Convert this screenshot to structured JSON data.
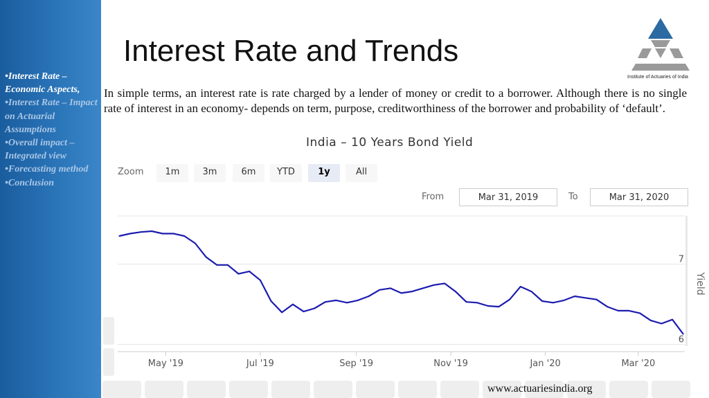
{
  "slide": {
    "title": "Interest Rate and Trends",
    "intro": "In simple terms, an interest rate is rate charged by a lender of money or credit to a borrower. Although there is no single rate of interest in an economy- depends on term, purpose, creditworthiness of the borrower and probability of ‘default’.",
    "footer_url": "www.actuariesindia.org",
    "logo_caption": "Institute of Actuaries of India"
  },
  "sidebar": {
    "items": [
      {
        "label": "•Interest Rate – Economic Aspects,",
        "active": true
      },
      {
        "label": "•Interest Rate – Impact on Actuarial Assumptions",
        "active": false
      },
      {
        "label": "•Overall impact – Integrated view",
        "active": false
      },
      {
        "label": "•Forecasting method",
        "active": false
      },
      {
        "label": "•Conclusion",
        "active": false
      }
    ]
  },
  "chart_toolbar": {
    "zoom_label": "Zoom",
    "zoom_buttons": [
      "1m",
      "3m",
      "6m",
      "YTD",
      "1y",
      "All"
    ],
    "active_zoom": "1y",
    "from_label": "From",
    "from_value": "Mar 31, 2019",
    "to_label": "To",
    "to_value": "Mar 31, 2020"
  },
  "colors": {
    "sidebar": "#1a5d9e",
    "line": "#1b1bb0",
    "logo_blue": "#2b6aa3",
    "logo_grey": "#9a9a9a"
  },
  "chart_data": {
    "type": "line",
    "title": "India – 10 Years Bond Yield",
    "ylabel": "Yield",
    "ylim": [
      6,
      7.5
    ],
    "y_ticks": [
      6,
      7
    ],
    "y_tick_labels": [
      "6",
      "7"
    ],
    "x_ticks": [
      "2019-05-01",
      "2019-07-01",
      "2019-09-01",
      "2019-11-01",
      "2020-01-01",
      "2020-03-01"
    ],
    "x_tick_labels": [
      "May '19",
      "Jul '19",
      "Sep '19",
      "Nov '19",
      "Jan '20",
      "Mar '20"
    ],
    "grid": "horizontal",
    "series": [
      {
        "x": [
          "2019-04-01",
          "2019-04-08",
          "2019-04-15",
          "2019-04-22",
          "2019-04-29",
          "2019-05-06",
          "2019-05-13",
          "2019-05-20",
          "2019-05-27",
          "2019-06-03",
          "2019-06-10",
          "2019-06-17",
          "2019-06-24",
          "2019-07-01",
          "2019-07-08",
          "2019-07-15",
          "2019-07-22",
          "2019-07-29",
          "2019-08-05",
          "2019-08-12",
          "2019-08-19",
          "2019-08-26",
          "2019-09-02",
          "2019-09-09",
          "2019-09-16",
          "2019-09-23",
          "2019-09-30",
          "2019-10-07",
          "2019-10-14",
          "2019-10-21",
          "2019-10-28",
          "2019-11-04",
          "2019-11-11",
          "2019-11-18",
          "2019-11-25",
          "2019-12-02",
          "2019-12-09",
          "2019-12-16",
          "2019-12-23",
          "2019-12-30",
          "2020-01-06",
          "2020-01-13",
          "2020-01-20",
          "2020-01-27",
          "2020-02-03",
          "2020-02-10",
          "2020-02-17",
          "2020-02-24",
          "2020-03-02",
          "2020-03-09",
          "2020-03-16",
          "2020-03-23",
          "2020-03-30"
        ],
        "y": [
          7.35,
          7.38,
          7.4,
          7.41,
          7.38,
          7.38,
          7.35,
          7.26,
          7.09,
          6.99,
          6.99,
          6.88,
          6.91,
          6.8,
          6.54,
          6.4,
          6.5,
          6.41,
          6.45,
          6.53,
          6.55,
          6.52,
          6.55,
          6.6,
          6.68,
          6.7,
          6.64,
          6.66,
          6.7,
          6.74,
          6.76,
          6.66,
          6.53,
          6.52,
          6.48,
          6.47,
          6.56,
          6.72,
          6.66,
          6.54,
          6.52,
          6.55,
          6.6,
          6.58,
          6.56,
          6.47,
          6.42,
          6.42,
          6.39,
          6.3,
          6.26,
          6.31,
          6.13
        ]
      }
    ]
  }
}
